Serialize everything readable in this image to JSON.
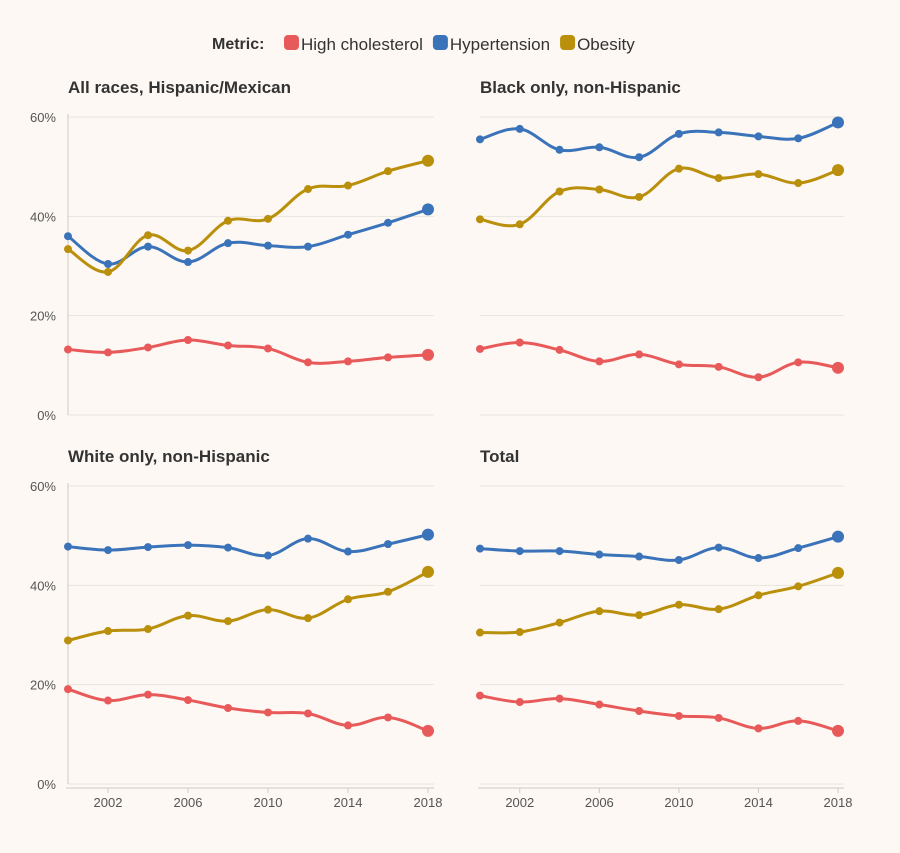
{
  "legend": {
    "title": "Metric:",
    "items": [
      {
        "label": "High cholesterol",
        "color": "#e85a5a"
      },
      {
        "label": "Hypertension",
        "color": "#3a73b9"
      },
      {
        "label": "Obesity",
        "color": "#b98f0b"
      }
    ]
  },
  "chart_data": [
    {
      "type": "line",
      "title": "All races, Hispanic/Mexican",
      "x": [
        2000,
        2002,
        2004,
        2006,
        2008,
        2010,
        2012,
        2014,
        2016,
        2018
      ],
      "ylim": [
        0,
        60
      ],
      "series": [
        {
          "name": "High cholesterol",
          "values": [
            13.2,
            12.6,
            13.6,
            15.1,
            14.0,
            13.4,
            10.6,
            10.8,
            11.6,
            12.1
          ]
        },
        {
          "name": "Hypertension",
          "values": [
            36.0,
            30.4,
            33.9,
            30.8,
            34.6,
            34.1,
            33.9,
            36.3,
            38.7,
            41.4
          ]
        },
        {
          "name": "Obesity",
          "values": [
            33.4,
            28.8,
            36.2,
            33.1,
            39.1,
            39.5,
            45.5,
            46.2,
            49.1,
            51.2
          ]
        }
      ]
    },
    {
      "type": "line",
      "title": "Black only, non-Hispanic",
      "x": [
        2000,
        2002,
        2004,
        2006,
        2008,
        2010,
        2012,
        2014,
        2016,
        2018
      ],
      "ylim": [
        0,
        60
      ],
      "series": [
        {
          "name": "High cholesterol",
          "values": [
            13.3,
            14.6,
            13.1,
            10.8,
            12.2,
            10.2,
            9.7,
            7.6,
            10.6,
            9.5
          ]
        },
        {
          "name": "Hypertension",
          "values": [
            55.5,
            57.6,
            53.4,
            53.9,
            51.9,
            56.6,
            56.9,
            56.1,
            55.7,
            58.9
          ]
        },
        {
          "name": "Obesity",
          "values": [
            39.4,
            38.4,
            45.0,
            45.4,
            43.9,
            49.6,
            47.7,
            48.5,
            46.7,
            49.3
          ]
        }
      ]
    },
    {
      "type": "line",
      "title": "White only, non-Hispanic",
      "x": [
        2000,
        2002,
        2004,
        2006,
        2008,
        2010,
        2012,
        2014,
        2016,
        2018
      ],
      "ylim": [
        0,
        60
      ],
      "series": [
        {
          "name": "High cholesterol",
          "values": [
            19.1,
            16.8,
            18.0,
            16.9,
            15.3,
            14.4,
            14.2,
            11.8,
            13.4,
            10.7
          ]
        },
        {
          "name": "Hypertension",
          "values": [
            47.8,
            47.1,
            47.7,
            48.1,
            47.6,
            46.0,
            49.4,
            46.8,
            48.3,
            50.2
          ]
        },
        {
          "name": "Obesity",
          "values": [
            28.9,
            30.8,
            31.2,
            33.9,
            32.8,
            35.1,
            33.4,
            37.2,
            38.7,
            42.7
          ]
        }
      ]
    },
    {
      "type": "line",
      "title": "Total",
      "x": [
        2000,
        2002,
        2004,
        2006,
        2008,
        2010,
        2012,
        2014,
        2016,
        2018
      ],
      "ylim": [
        0,
        60
      ],
      "series": [
        {
          "name": "High cholesterol",
          "values": [
            17.8,
            16.5,
            17.2,
            16.0,
            14.7,
            13.7,
            13.3,
            11.2,
            12.7,
            10.7
          ]
        },
        {
          "name": "Hypertension",
          "values": [
            47.4,
            46.9,
            46.9,
            46.2,
            45.8,
            45.1,
            47.6,
            45.5,
            47.5,
            49.8
          ]
        },
        {
          "name": "Obesity",
          "values": [
            30.5,
            30.6,
            32.5,
            34.8,
            34.0,
            36.1,
            35.2,
            38.0,
            39.8,
            42.5
          ]
        }
      ]
    }
  ],
  "axes": {
    "y_ticks": [
      0,
      20,
      40,
      60
    ],
    "y_tick_labels": [
      "0%",
      "20%",
      "40%",
      "60%"
    ],
    "x_ticks": [
      2002,
      2006,
      2010,
      2014,
      2018
    ],
    "x_tick_labels": [
      "2002",
      "2006",
      "2010",
      "2014",
      "2018"
    ]
  }
}
